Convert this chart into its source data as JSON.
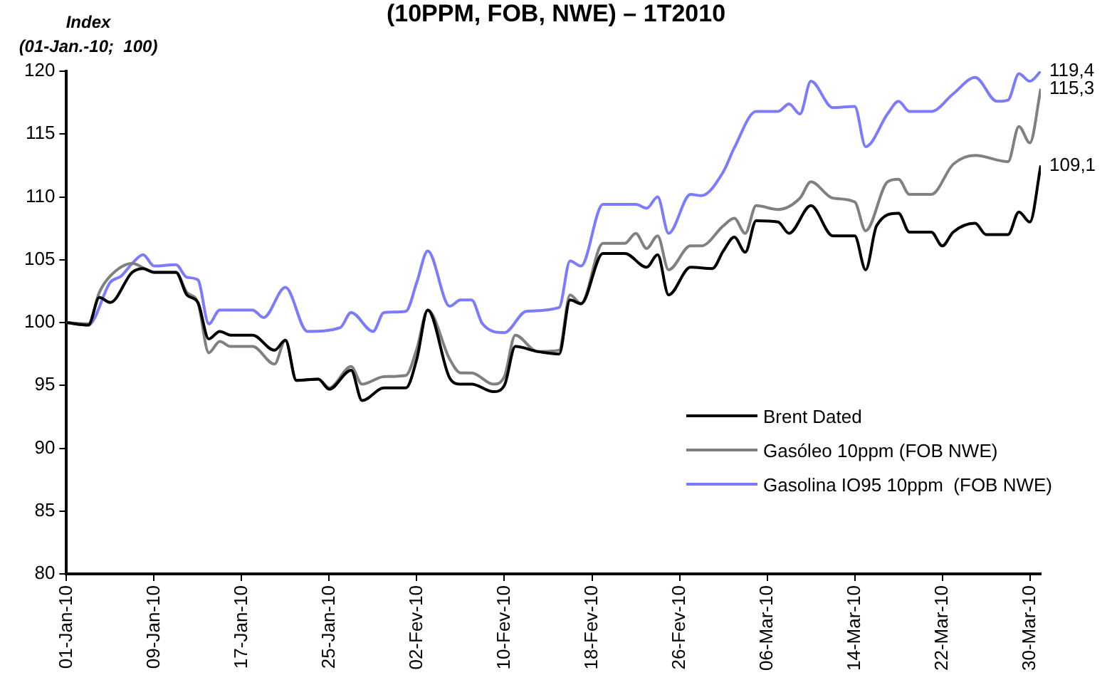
{
  "chart_data": {
    "type": "line",
    "title": "(10PPM, FOB, NWE) – 1T2010",
    "ylabel": "Index\n(01-Jan.-10;  100)",
    "xlim": [
      "2010-01-01",
      "2010-03-31"
    ],
    "xticks": [
      {
        "value": "2010-01-01",
        "label": "01-Jan-10"
      },
      {
        "value": "2010-01-09",
        "label": "09-Jan-10"
      },
      {
        "value": "2010-01-17",
        "label": "17-Jan-10"
      },
      {
        "value": "2010-01-25",
        "label": "25-Jan-10"
      },
      {
        "value": "2010-02-02",
        "label": "02-Fev-10"
      },
      {
        "value": "2010-02-10",
        "label": "10-Fev-10"
      },
      {
        "value": "2010-02-18",
        "label": "18-Fev-10"
      },
      {
        "value": "2010-02-26",
        "label": "26-Fev-10"
      },
      {
        "value": "2010-03-06",
        "label": "06-Mar-10"
      },
      {
        "value": "2010-03-14",
        "label": "14-Mar-10"
      },
      {
        "value": "2010-03-22",
        "label": "22-Mar-10"
      },
      {
        "value": "2010-03-30",
        "label": "30-Mar-10"
      }
    ],
    "ylim": [
      80,
      120
    ],
    "yticks": [
      80,
      85,
      90,
      95,
      100,
      105,
      110,
      115,
      120
    ],
    "grid": false,
    "legend": "bottom right",
    "marker": "none",
    "line_style": "solid",
    "series": [
      {
        "name": "Brent Dated",
        "color": "#000000",
        "x": [
          "2010-01-01",
          "2010-01-03",
          "2010-01-04",
          "2010-01-05",
          "2010-01-07",
          "2010-01-08",
          "2010-01-09",
          "2010-01-11",
          "2010-01-12",
          "2010-01-13",
          "2010-01-14",
          "2010-01-15",
          "2010-01-16",
          "2010-01-18",
          "2010-01-20",
          "2010-01-21",
          "2010-01-22",
          "2010-01-24",
          "2010-01-25",
          "2010-01-27",
          "2010-01-28",
          "2010-01-30",
          "2010-02-01",
          "2010-02-02",
          "2010-02-03",
          "2010-02-05",
          "2010-02-06",
          "2010-02-07",
          "2010-02-09",
          "2010-02-10",
          "2010-02-11",
          "2010-02-13",
          "2010-02-15",
          "2010-02-16",
          "2010-02-17",
          "2010-02-19",
          "2010-02-21",
          "2010-02-23",
          "2010-02-24",
          "2010-02-25",
          "2010-02-27",
          "2010-03-01",
          "2010-03-02",
          "2010-03-03",
          "2010-03-04",
          "2010-03-05",
          "2010-03-07",
          "2010-03-08",
          "2010-03-10",
          "2010-03-12",
          "2010-03-14",
          "2010-03-15",
          "2010-03-16",
          "2010-03-18",
          "2010-03-19",
          "2010-03-21",
          "2010-03-22",
          "2010-03-23",
          "2010-03-25",
          "2010-03-26",
          "2010-03-28",
          "2010-03-29",
          "2010-03-30",
          "2010-03-31"
        ],
        "values": [
          100,
          99.8,
          102.0,
          101.6,
          104.0,
          104.3,
          104.0,
          104.0,
          102.2,
          101.6,
          98.7,
          99.3,
          99.0,
          99.0,
          97.8,
          98.6,
          95.4,
          95.5,
          94.7,
          96.2,
          93.8,
          94.8,
          94.8,
          97.1,
          101.0,
          95.6,
          95.1,
          95.1,
          94.5,
          95.0,
          98.1,
          97.7,
          97.5,
          101.8,
          101.5,
          105.5,
          105.5,
          104.4,
          105.4,
          102.2,
          104.4,
          104.3,
          105.7,
          106.8,
          105.6,
          108.1,
          108.0,
          107.1,
          109.3,
          106.9,
          106.9,
          104.2,
          107.7,
          108.7,
          107.2,
          107.2,
          106.1,
          107.2,
          107.9,
          107.0,
          107.0,
          108.8,
          108.0,
          112.5
        ]
      },
      {
        "name": "Gasóleo 10ppm (FOB NWE)",
        "color": "#808080",
        "x": [
          "2010-01-01",
          "2010-01-03",
          "2010-01-04",
          "2010-01-05",
          "2010-01-07",
          "2010-01-09",
          "2010-01-11",
          "2010-01-12",
          "2010-01-13",
          "2010-01-14",
          "2010-01-15",
          "2010-01-16",
          "2010-01-18",
          "2010-01-20",
          "2010-01-21",
          "2010-01-22",
          "2010-01-24",
          "2010-01-25",
          "2010-01-27",
          "2010-01-28",
          "2010-01-30",
          "2010-02-01",
          "2010-02-02",
          "2010-02-03",
          "2010-02-05",
          "2010-02-06",
          "2010-02-07",
          "2010-02-09",
          "2010-02-10",
          "2010-02-11",
          "2010-02-13",
          "2010-02-15",
          "2010-02-16",
          "2010-02-17",
          "2010-02-19",
          "2010-02-21",
          "2010-02-22",
          "2010-02-23",
          "2010-02-24",
          "2010-02-25",
          "2010-02-27",
          "2010-02-28",
          "2010-03-02",
          "2010-03-03",
          "2010-03-04",
          "2010-03-05",
          "2010-03-07",
          "2010-03-09",
          "2010-03-10",
          "2010-03-12",
          "2010-03-14",
          "2010-03-15",
          "2010-03-17",
          "2010-03-18",
          "2010-03-19",
          "2010-03-21",
          "2010-03-23",
          "2010-03-25",
          "2010-03-28",
          "2010-03-29",
          "2010-03-30",
          "2010-03-31"
        ],
        "values": [
          100,
          99.9,
          102.4,
          103.7,
          104.7,
          104.0,
          104.0,
          102.4,
          101.6,
          97.6,
          98.5,
          98.1,
          98.1,
          96.7,
          98.6,
          95.4,
          95.5,
          94.8,
          96.5,
          95.1,
          95.7,
          95.8,
          97.9,
          101.0,
          97.1,
          96.0,
          96.0,
          95.1,
          95.7,
          99.0,
          97.7,
          97.8,
          102.2,
          101.5,
          106.3,
          106.3,
          107.1,
          105.9,
          106.9,
          104.2,
          106.1,
          106.1,
          107.7,
          108.3,
          107.1,
          109.3,
          109.0,
          109.9,
          111.2,
          109.9,
          109.6,
          107.3,
          111.2,
          111.4,
          110.2,
          110.2,
          112.6,
          113.3,
          112.8,
          115.6,
          114.3,
          118.6
        ]
      },
      {
        "name": "Gasolina IO95 10ppm  (FOB NWE)",
        "color": "#7b7bff",
        "x": [
          "2010-01-01",
          "2010-01-03",
          "2010-01-05",
          "2010-01-06",
          "2010-01-07",
          "2010-01-08",
          "2010-01-09",
          "2010-01-11",
          "2010-01-12",
          "2010-01-13",
          "2010-01-14",
          "2010-01-15",
          "2010-01-18",
          "2010-01-19",
          "2010-01-21",
          "2010-01-23",
          "2010-01-26",
          "2010-01-27",
          "2010-01-29",
          "2010-01-30",
          "2010-02-01",
          "2010-02-02",
          "2010-02-03",
          "2010-02-05",
          "2010-02-06",
          "2010-02-07",
          "2010-02-08",
          "2010-02-10",
          "2010-02-12",
          "2010-02-15",
          "2010-02-16",
          "2010-02-17",
          "2010-02-19",
          "2010-02-22",
          "2010-02-23",
          "2010-02-24",
          "2010-02-25",
          "2010-02-27",
          "2010-02-28",
          "2010-03-02",
          "2010-03-03",
          "2010-03-05",
          "2010-03-07",
          "2010-03-08",
          "2010-03-09",
          "2010-03-10",
          "2010-03-12",
          "2010-03-14",
          "2010-03-15",
          "2010-03-17",
          "2010-03-18",
          "2010-03-19",
          "2010-03-21",
          "2010-03-23",
          "2010-03-25",
          "2010-03-27",
          "2010-03-28",
          "2010-03-29",
          "2010-03-30",
          "2010-03-31"
        ],
        "values": [
          100,
          99.8,
          103.2,
          103.7,
          104.7,
          105.4,
          104.5,
          104.6,
          103.6,
          103.4,
          99.9,
          101.0,
          101.0,
          100.4,
          102.8,
          99.3,
          99.6,
          100.8,
          99.3,
          100.8,
          100.9,
          103.2,
          105.7,
          101.3,
          101.8,
          101.8,
          99.9,
          99.2,
          100.9,
          101.2,
          104.9,
          104.5,
          109.4,
          109.4,
          109.1,
          110.0,
          107.1,
          110.2,
          110.1,
          112.0,
          113.9,
          116.8,
          116.8,
          117.4,
          116.6,
          119.2,
          117.1,
          117.2,
          114.0,
          116.6,
          117.6,
          116.8,
          116.8,
          118.2,
          119.5,
          117.6,
          117.7,
          119.8,
          119.2,
          120.0
        ]
      }
    ],
    "annotations": [
      {
        "text": "119,4",
        "x": "2010-03-31",
        "y": 120.0
      },
      {
        "text": "115,3",
        "x": "2010-03-31",
        "y": 118.6
      },
      {
        "text": "109,1",
        "x": "2010-03-31",
        "y": 112.5
      }
    ]
  }
}
